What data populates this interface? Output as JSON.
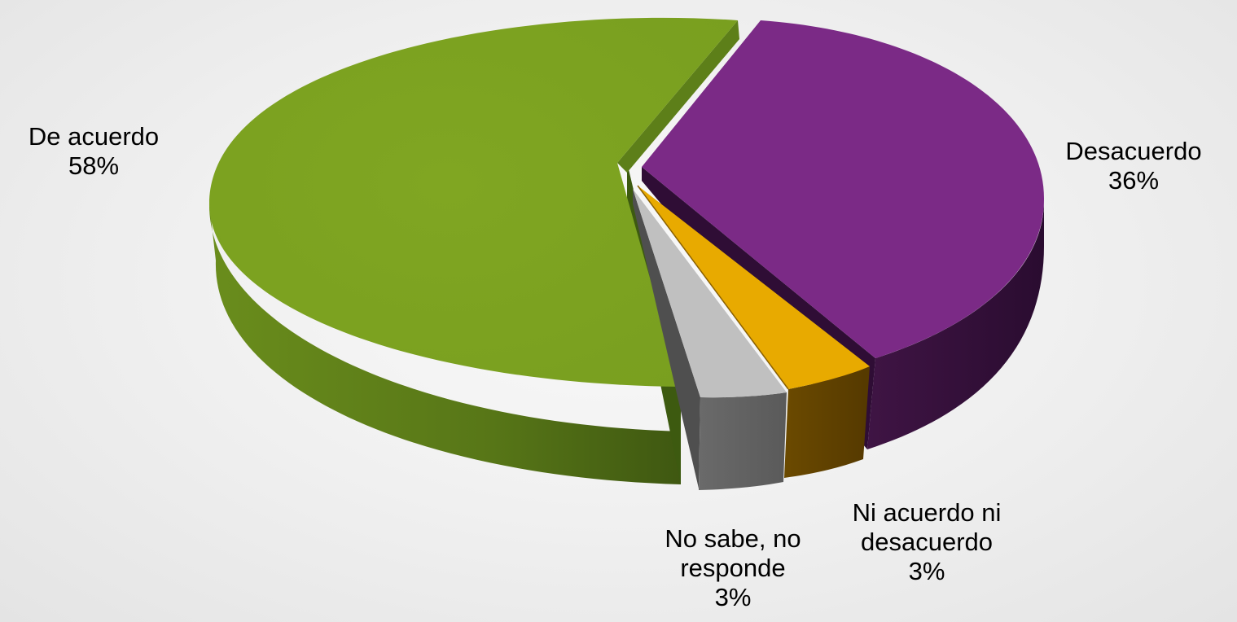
{
  "chart_data": {
    "type": "pie",
    "style": "3d-exploded",
    "title": "",
    "slices": [
      {
        "label": "De acuerdo",
        "percent_label": "58%",
        "value": 58,
        "color": "#7ea421"
      },
      {
        "label": "Desacuerdo",
        "percent_label": "36%",
        "value": 36,
        "color": "#7b2a86"
      },
      {
        "label": "Ni acuerdo ni desacuerdo",
        "percent_label": "3%",
        "value": 3,
        "color": "#e8aa00"
      },
      {
        "label": "No sabe, no responde",
        "percent_label": "3%",
        "value": 3,
        "color": "#bdbdbd"
      }
    ]
  },
  "labels": {
    "de_acuerdo": {
      "line1": "De acuerdo",
      "pct": "58%"
    },
    "desacuerdo": {
      "line1": "Desacuerdo",
      "pct": "36%"
    },
    "ni_acuerdo": {
      "line1": "Ni acuerdo ni",
      "line2": "desacuerdo",
      "pct": "3%"
    },
    "no_sabe": {
      "line1": "No sabe, no",
      "line2": "responde",
      "pct": "3%"
    }
  }
}
